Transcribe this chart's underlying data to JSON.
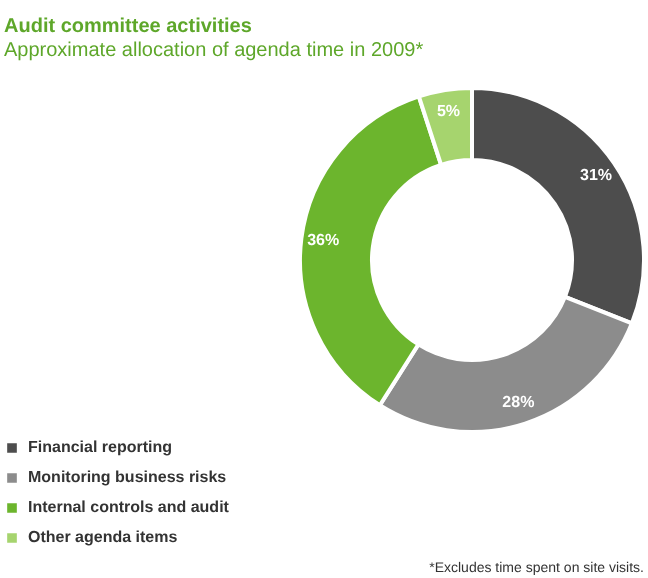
{
  "chart_data": {
    "type": "donut",
    "title": "Audit committee activities",
    "subtitle": "Approximate allocation of agenda time in 2009*",
    "categories": [
      "Financial reporting",
      "Monitoring business risks",
      "Internal controls and audit",
      "Other agenda items"
    ],
    "values": [
      31,
      28,
      36,
      5
    ],
    "colors": [
      "#4d4d4d",
      "#8c8c8c",
      "#6cb52d",
      "#a6d46e"
    ],
    "value_labels": [
      "31%",
      "28%",
      "36%",
      "5%"
    ],
    "legend": "bottom left",
    "annotations": [
      "*Excludes time spent on site visits."
    ]
  }
}
